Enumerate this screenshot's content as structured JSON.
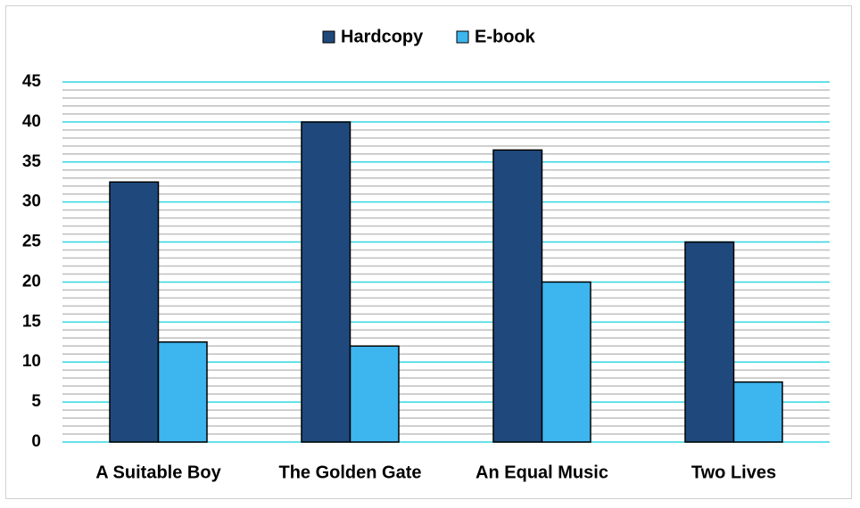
{
  "chart_data": {
    "type": "bar",
    "categories": [
      "A Suitable Boy",
      "The Golden Gate",
      "An Equal Music",
      "Two Lives"
    ],
    "series": [
      {
        "name": "Hardcopy",
        "color": "#1f497d",
        "values": [
          32.5,
          40,
          36.5,
          25
        ]
      },
      {
        "name": "E-book",
        "color": "#3db5ee",
        "values": [
          12.5,
          12,
          20,
          7.5
        ]
      }
    ],
    "ylim": [
      0,
      45
    ],
    "yticks": [
      0,
      5,
      10,
      15,
      20,
      25,
      30,
      35,
      40,
      45
    ],
    "minor_yticks": [
      1,
      2,
      3,
      4,
      6,
      7,
      8,
      9,
      11,
      12,
      13,
      14,
      16,
      17,
      18,
      19,
      21,
      22,
      23,
      24,
      26,
      27,
      28,
      29,
      31,
      32,
      33,
      34,
      36,
      37,
      38,
      39,
      41,
      42,
      43,
      44
    ],
    "grid": true,
    "grid_color": "#33d6e0",
    "minor_grid_color": "#bfbfbf",
    "legend": "top"
  }
}
